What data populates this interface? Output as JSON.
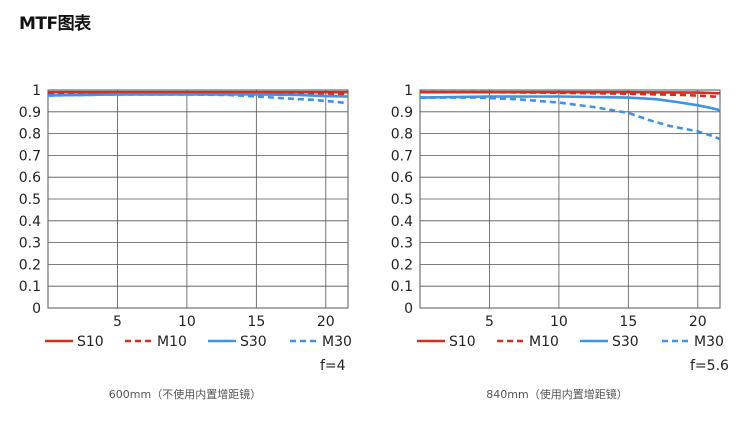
{
  "page": {
    "title": "MTF图表"
  },
  "colors": {
    "sagittal": "#d62d20",
    "meridional": "#3f92e6",
    "grid": "#555555"
  },
  "chart_data": [
    {
      "type": "line",
      "caption": "600mm（不使用内置增距镜）",
      "aperture": "f=4",
      "xlim": [
        0,
        21.6
      ],
      "ylim": [
        0,
        1
      ],
      "xticks": [
        "5",
        "10",
        "15",
        "20"
      ],
      "yticks": [
        "0",
        "0.1",
        "0.2",
        "0.3",
        "0.4",
        "0.5",
        "0.6",
        "0.7",
        "0.8",
        "0.9",
        "1"
      ],
      "grid": true,
      "legend_placement": "bottom",
      "series": [
        {
          "name": "S10",
          "color": "#d62d20",
          "dash": false,
          "x": [
            0,
            5,
            10,
            15,
            20,
            21.6
          ],
          "values": [
            0.99,
            0.99,
            0.99,
            0.99,
            0.99,
            0.99
          ]
        },
        {
          "name": "M10",
          "color": "#d62d20",
          "dash": true,
          "x": [
            0,
            5,
            10,
            15,
            20,
            21.6
          ],
          "values": [
            0.985,
            0.985,
            0.985,
            0.985,
            0.985,
            0.98
          ]
        },
        {
          "name": "S30",
          "color": "#3f92e6",
          "dash": false,
          "x": [
            0,
            5,
            10,
            15,
            18,
            20,
            21.6
          ],
          "values": [
            0.975,
            0.98,
            0.98,
            0.98,
            0.977,
            0.972,
            0.97
          ]
        },
        {
          "name": "M30",
          "color": "#3f92e6",
          "dash": true,
          "x": [
            0,
            5,
            10,
            13,
            15,
            17,
            19,
            20.5,
            21.6
          ],
          "values": [
            0.975,
            0.98,
            0.98,
            0.977,
            0.97,
            0.962,
            0.955,
            0.947,
            0.94
          ]
        }
      ]
    },
    {
      "type": "line",
      "caption": "840mm（使用内置增距镜）",
      "aperture": "f=5.6",
      "xlim": [
        0,
        21.6
      ],
      "ylim": [
        0,
        1
      ],
      "xticks": [
        "5",
        "10",
        "15",
        "20"
      ],
      "yticks": [
        "0",
        "0.1",
        "0.2",
        "0.3",
        "0.4",
        "0.5",
        "0.6",
        "0.7",
        "0.8",
        "0.9",
        "1"
      ],
      "grid": true,
      "legend_placement": "bottom",
      "series": [
        {
          "name": "S10",
          "color": "#d62d20",
          "dash": false,
          "x": [
            0,
            5,
            10,
            15,
            20,
            21.6
          ],
          "values": [
            0.99,
            0.99,
            0.99,
            0.99,
            0.988,
            0.985
          ]
        },
        {
          "name": "M10",
          "color": "#d62d20",
          "dash": true,
          "x": [
            0,
            5,
            10,
            15,
            17,
            19,
            20.5,
            21.6
          ],
          "values": [
            0.99,
            0.99,
            0.987,
            0.983,
            0.98,
            0.977,
            0.973,
            0.968
          ]
        },
        {
          "name": "S30",
          "color": "#3f92e6",
          "dash": false,
          "x": [
            0,
            5,
            10,
            15,
            17,
            18.5,
            20,
            21,
            21.6
          ],
          "values": [
            0.965,
            0.97,
            0.97,
            0.965,
            0.958,
            0.945,
            0.93,
            0.917,
            0.907
          ]
        },
        {
          "name": "M30",
          "color": "#3f92e6",
          "dash": true,
          "x": [
            0,
            4,
            7,
            10,
            12.5,
            15,
            16.5,
            18,
            20,
            21,
            21.6
          ],
          "values": [
            0.965,
            0.965,
            0.958,
            0.942,
            0.922,
            0.895,
            0.862,
            0.835,
            0.81,
            0.79,
            0.775
          ]
        }
      ]
    }
  ]
}
